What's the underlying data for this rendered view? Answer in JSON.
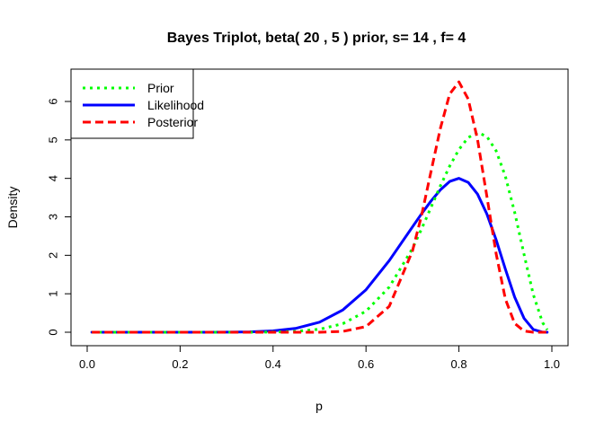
{
  "chart_data": {
    "type": "line",
    "title": "Bayes Triplot, beta( 20 , 5 ) prior, s= 14 , f= 4",
    "xlabel": "p",
    "ylabel": "Density",
    "xlim": [
      0,
      1
    ],
    "ylim": [
      0,
      6.6
    ],
    "xticks": [
      "0.0",
      "0.2",
      "0.4",
      "0.6",
      "0.8",
      "1.0"
    ],
    "yticks": [
      "0",
      "1",
      "2",
      "3",
      "4",
      "5",
      "6"
    ],
    "grid": false,
    "legend_position": "top-left",
    "x": [
      0.01,
      0.05,
      0.1,
      0.15,
      0.2,
      0.25,
      0.3,
      0.35,
      0.4,
      0.45,
      0.5,
      0.55,
      0.6,
      0.65,
      0.7,
      0.72,
      0.74,
      0.76,
      0.78,
      0.8,
      0.82,
      0.84,
      0.86,
      0.88,
      0.9,
      0.92,
      0.94,
      0.96,
      0.98,
      0.99
    ],
    "series": [
      {
        "name": "Prior",
        "color": "#00ff00",
        "dash": "dotted",
        "values": [
          0,
          0,
          0,
          0,
          0,
          0,
          0,
          0.001,
          0.005,
          0.023,
          0.078,
          0.221,
          0.546,
          1.175,
          2.176,
          2.695,
          3.249,
          3.803,
          4.318,
          4.751,
          5.061,
          5.192,
          5.091,
          4.717,
          4.05,
          3.118,
          2.029,
          0.983,
          0.249,
          0.063
        ]
      },
      {
        "name": "Likelihood",
        "color": "#0000ff",
        "dash": "solid",
        "values": [
          0,
          0,
          0,
          0,
          0,
          0.001,
          0.002,
          0.01,
          0.035,
          0.103,
          0.262,
          0.578,
          1.105,
          1.862,
          2.739,
          3.087,
          3.414,
          3.7,
          3.919,
          4.001,
          3.897,
          3.59,
          3.08,
          2.403,
          1.639,
          0.914,
          0.364,
          0.073,
          0.003,
          0.001
        ]
      },
      {
        "name": "Posterior",
        "color": "#ff0000",
        "dash": "dashed",
        "values": [
          0,
          0,
          0,
          0,
          0,
          0,
          0,
          0,
          0,
          0,
          0.001,
          0.021,
          0.147,
          0.674,
          2.114,
          3.053,
          4.187,
          5.295,
          6.194,
          6.508,
          6.063,
          5.01,
          3.547,
          2.04,
          0.861,
          0.229,
          0.03,
          0.001,
          0,
          0
        ]
      }
    ]
  }
}
